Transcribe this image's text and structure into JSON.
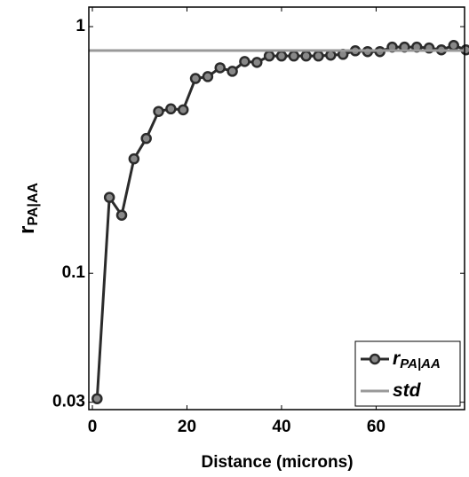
{
  "chart_data": {
    "type": "line",
    "xlabel": "Distance (microns)",
    "ylabel": {
      "text": "r",
      "subscript": "PA|AA"
    },
    "log_y": true,
    "xlim": [
      -0.75,
      78.7
    ],
    "ylim": [
      0.028,
      1.2
    ],
    "xticks": [
      0,
      20,
      40,
      60
    ],
    "yticks": [
      0.03,
      0.1,
      1
    ],
    "x": [
      1,
      3.6,
      6.2,
      8.8,
      11.4,
      14,
      16.6,
      19.2,
      21.8,
      24.4,
      27,
      29.6,
      32.2,
      34.8,
      37.4,
      40,
      42.6,
      45.2,
      47.8,
      50.4,
      53,
      55.6,
      58.2,
      60.8,
      63.4,
      66,
      68.6,
      71.2,
      73.8,
      76.4,
      79
    ],
    "series": [
      {
        "name": "r",
        "name_subscript": "PA|AA",
        "color": "#2b2b2b",
        "values": [
          0.031,
          0.203,
          0.172,
          0.291,
          0.352,
          0.453,
          0.464,
          0.46,
          0.616,
          0.627,
          0.681,
          0.659,
          0.722,
          0.716,
          0.76,
          0.76,
          0.76,
          0.76,
          0.76,
          0.766,
          0.772,
          0.798,
          0.792,
          0.792,
          0.826,
          0.826,
          0.826,
          0.819,
          0.805,
          0.839,
          0.805
        ]
      },
      {
        "name": "std",
        "color": "#999999",
        "hline": 0.8
      }
    ],
    "legend": "lower right"
  }
}
